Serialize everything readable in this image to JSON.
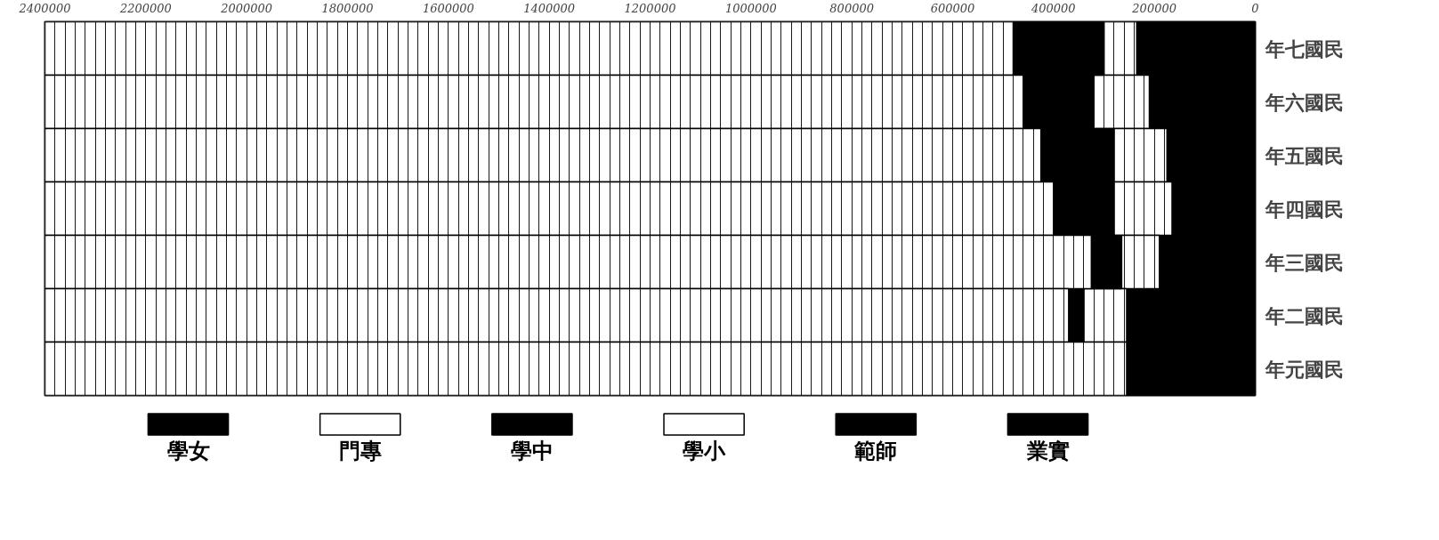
{
  "chart_data": {
    "type": "bar",
    "orientation": "horizontal",
    "stacked": true,
    "categories": [
      "年七國民",
      "年六國民",
      "年五國民",
      "年四國民",
      "年三國民",
      "年二國民",
      "年元國民"
    ],
    "series": [
      {
        "name": "學女",
        "color": "#000000",
        "values": [
          235000,
          210000,
          175000,
          165000,
          190000,
          255000,
          255000
        ]
      },
      {
        "name": "門專",
        "color": "#ffffff",
        "values": [
          65000,
          110000,
          105000,
          115000,
          75000,
          85000,
          0
        ]
      },
      {
        "name": "學中",
        "color": "#000000",
        "values": [
          180000,
          140000,
          145000,
          120000,
          60000,
          30000,
          0
        ]
      },
      {
        "name": "學小",
        "color": "#ffffff",
        "values": [
          1920000,
          1940000,
          1975000,
          2000000,
          2075000,
          2030000,
          2145000
        ]
      },
      {
        "name": "範師",
        "color": "#000000",
        "values": [
          null,
          null,
          null,
          null,
          null,
          null,
          null
        ]
      },
      {
        "name": "業實",
        "color": "#000000",
        "values": [
          null,
          null,
          null,
          null,
          null,
          null,
          null
        ]
      }
    ],
    "xlim": [
      2400000,
      0
    ],
    "xticks": [
      0,
      {
        "value": 20000,
        "label": null
      },
      {
        "value": 40000,
        "label": null
      },
      {
        "value": 60000,
        "label": null
      },
      {
        "value": 80000,
        "label": null
      },
      {
        "value": 100000,
        "label": null
      },
      {
        "value": 120000,
        "label": null
      },
      {
        "value": 140000,
        "label": null
      },
      {
        "value": 160000,
        "label": null
      },
      {
        "value": 180000,
        "label": null
      },
      200000,
      {
        "value": 220000,
        "label": null
      },
      {
        "value": 240000,
        "label": null
      },
      {
        "value": 260000,
        "label": null
      },
      {
        "value": 280000,
        "label": null
      },
      {
        "value": 300000,
        "label": null
      },
      {
        "value": 320000,
        "label": null
      },
      {
        "value": 340000,
        "label": null
      },
      {
        "value": 360000,
        "label": null
      },
      {
        "value": 380000,
        "label": null
      },
      400000,
      {
        "value": 420000,
        "label": null
      },
      {
        "value": 440000,
        "label": null
      },
      {
        "value": 460000,
        "label": null
      },
      {
        "value": 480000,
        "label": null
      },
      {
        "value": 500000,
        "label": null
      },
      {
        "value": 520000,
        "label": null
      },
      {
        "value": 540000,
        "label": null
      },
      {
        "value": 560000,
        "label": null
      },
      {
        "value": 580000,
        "label": null
      },
      600000,
      {
        "value": 620000,
        "label": null
      },
      {
        "value": 640000,
        "label": null
      },
      {
        "value": 660000,
        "label": null
      },
      {
        "value": 680000,
        "label": null
      },
      {
        "value": 700000,
        "label": null
      },
      {
        "value": 720000,
        "label": null
      },
      {
        "value": 740000,
        "label": null
      },
      {
        "value": 760000,
        "label": null
      },
      {
        "value": 780000,
        "label": null
      },
      800000,
      {
        "value": 820000,
        "label": null
      },
      {
        "value": 840000,
        "label": null
      },
      {
        "value": 860000,
        "label": null
      },
      {
        "value": 880000,
        "label": null
      },
      {
        "value": 900000,
        "label": null
      },
      {
        "value": 920000,
        "label": null
      },
      {
        "value": 940000,
        "label": null
      },
      {
        "value": 960000,
        "label": null
      },
      {
        "value": 980000,
        "label": null
      },
      1000000,
      {
        "value": 1020000,
        "label": null
      },
      {
        "value": 1040000,
        "label": null
      },
      {
        "value": 1060000,
        "label": null
      },
      {
        "value": 1080000,
        "label": null
      },
      {
        "value": 1100000,
        "label": null
      },
      {
        "value": 1120000,
        "label": null
      },
      {
        "value": 1140000,
        "label": null
      },
      {
        "value": 1160000,
        "label": null
      },
      {
        "value": 1180000,
        "label": null
      },
      1200000,
      {
        "value": 1220000,
        "label": null
      },
      {
        "value": 1240000,
        "label": null
      },
      {
        "value": 1260000,
        "label": null
      },
      {
        "value": 1280000,
        "label": null
      },
      {
        "value": 1300000,
        "label": null
      },
      {
        "value": 1320000,
        "label": null
      },
      {
        "value": 1340000,
        "label": null
      },
      {
        "value": 1360000,
        "label": null
      },
      {
        "value": 1380000,
        "label": null
      },
      1400000,
      {
        "value": 1420000,
        "label": null
      },
      {
        "value": 1440000,
        "label": null
      },
      {
        "value": 1460000,
        "label": null
      },
      {
        "value": 1480000,
        "label": null
      },
      {
        "value": 1500000,
        "label": null
      },
      {
        "value": 1520000,
        "label": null
      },
      {
        "value": 1540000,
        "label": null
      },
      {
        "value": 1560000,
        "label": null
      },
      {
        "value": 1580000,
        "label": null
      },
      1600000,
      {
        "value": 1620000,
        "label": null
      },
      {
        "value": 1640000,
        "label": null
      },
      {
        "value": 1660000,
        "label": null
      },
      {
        "value": 1680000,
        "label": null
      },
      {
        "value": 1700000,
        "label": null
      },
      {
        "value": 1720000,
        "label": null
      },
      {
        "value": 1740000,
        "label": null
      },
      {
        "value": 1760000,
        "label": null
      },
      {
        "value": 1780000,
        "label": null
      },
      1800000,
      {
        "value": 1820000,
        "label": null
      },
      {
        "value": 1840000,
        "label": null
      },
      {
        "value": 1860000,
        "label": null
      },
      {
        "value": 1880000,
        "label": null
      },
      {
        "value": 1900000,
        "label": null
      },
      {
        "value": 1920000,
        "label": null
      },
      {
        "value": 1940000,
        "label": null
      },
      {
        "value": 1960000,
        "label": null
      },
      {
        "value": 1980000,
        "label": null
      },
      2000000,
      {
        "value": 2020000,
        "label": null
      },
      {
        "value": 2040000,
        "label": null
      },
      {
        "value": 2060000,
        "label": null
      },
      {
        "value": 2080000,
        "label": null
      },
      {
        "value": 2100000,
        "label": null
      },
      {
        "value": 2120000,
        "label": null
      },
      {
        "value": 2140000,
        "label": null
      },
      {
        "value": 2160000,
        "label": null
      },
      {
        "value": 2180000,
        "label": null
      },
      2200000,
      {
        "value": 2220000,
        "label": null
      },
      {
        "value": 2240000,
        "label": null
      },
      {
        "value": 2260000,
        "label": null
      },
      {
        "value": 2280000,
        "label": null
      },
      {
        "value": 2300000,
        "label": null
      },
      {
        "value": 2320000,
        "label": null
      },
      {
        "value": 2340000,
        "label": null
      },
      {
        "value": 2360000,
        "label": null
      },
      {
        "value": 2380000,
        "label": null
      },
      2400000
    ],
    "grid": "x",
    "legend": "bottom"
  }
}
